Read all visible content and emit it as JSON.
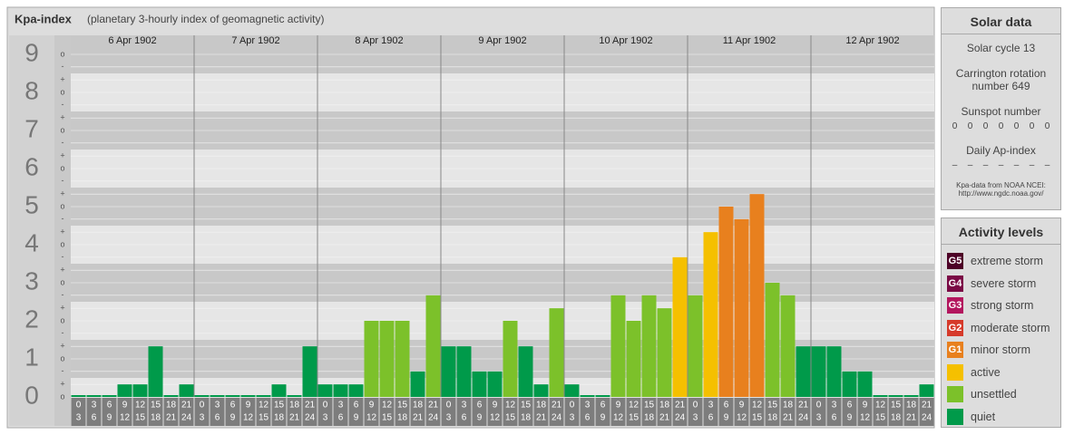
{
  "chart_data": {
    "type": "bar",
    "title": "Kpa-index",
    "subtitle": "(planetary 3-hourly index of geomagnetic activity)",
    "days": [
      "6 Apr 1902",
      "7 Apr 1902",
      "8 Apr 1902",
      "9 Apr 1902",
      "10 Apr 1902",
      "11 Apr 1902",
      "12 Apr 1902"
    ],
    "hours": [
      "0",
      "3",
      "6",
      "9",
      "12",
      "15",
      "18",
      "21",
      "24"
    ],
    "values": [
      0,
      0,
      0,
      0.33,
      0.33,
      1.33,
      0,
      0.33,
      0,
      0,
      0,
      0,
      0,
      0.33,
      0,
      1.33,
      0.33,
      0.33,
      0.33,
      2,
      2,
      2,
      0.67,
      2.67,
      1.33,
      1.33,
      0.67,
      0.67,
      2,
      1.33,
      0.33,
      2.33,
      0.33,
      0,
      0,
      2.67,
      2,
      2.67,
      2.33,
      3.67,
      2.67,
      4.33,
      5,
      4.67,
      5.33,
      3,
      2.67,
      1.33,
      1.33,
      1.33,
      0.67,
      0.67,
      0,
      0,
      0,
      0.33
    ],
    "colors": [
      "#009a4a",
      "#009a4a",
      "#009a4a",
      "#009a4a",
      "#009a4a",
      "#009a4a",
      "#009a4a",
      "#009a4a",
      "#009a4a",
      "#009a4a",
      "#009a4a",
      "#009a4a",
      "#009a4a",
      "#009a4a",
      "#009a4a",
      "#009a4a",
      "#009a4a",
      "#009a4a",
      "#009a4a",
      "#7cc12a",
      "#7cc12a",
      "#7cc12a",
      "#009a4a",
      "#7cc12a",
      "#009a4a",
      "#009a4a",
      "#009a4a",
      "#009a4a",
      "#7cc12a",
      "#009a4a",
      "#009a4a",
      "#7cc12a",
      "#009a4a",
      "#009a4a",
      "#009a4a",
      "#7cc12a",
      "#7cc12a",
      "#7cc12a",
      "#7cc12a",
      "#f5c000",
      "#7cc12a",
      "#f5c000",
      "#e8801e",
      "#e8801e",
      "#e8801e",
      "#7cc12a",
      "#7cc12a",
      "#009a4a",
      "#009a4a",
      "#009a4a",
      "#009a4a",
      "#009a4a",
      "#009a4a",
      "#009a4a",
      "#009a4a",
      "#009a4a"
    ],
    "ylim": [
      0,
      9.5
    ],
    "yticks": [
      0,
      1,
      2,
      3,
      4,
      5,
      6,
      7,
      8,
      9
    ],
    "minor_ticks": [
      {
        "value": 0,
        "label": "o"
      },
      {
        "value": 0.33,
        "label": "+"
      },
      {
        "value": 0.67,
        "label": "-"
      },
      {
        "value": 1,
        "label": "o"
      },
      {
        "value": 1.33,
        "label": "+"
      },
      {
        "value": 1.67,
        "label": "-"
      },
      {
        "value": 2,
        "label": "o"
      },
      {
        "value": 2.33,
        "label": "+"
      },
      {
        "value": 2.67,
        "label": "-"
      },
      {
        "value": 3,
        "label": "o"
      },
      {
        "value": 3.33,
        "label": "+"
      },
      {
        "value": 3.67,
        "label": "-"
      },
      {
        "value": 4,
        "label": "o"
      },
      {
        "value": 4.33,
        "label": "+"
      },
      {
        "value": 4.67,
        "label": "-"
      },
      {
        "value": 5,
        "label": "o"
      },
      {
        "value": 5.33,
        "label": "+"
      },
      {
        "value": 5.67,
        "label": "-"
      },
      {
        "value": 6,
        "label": "o"
      },
      {
        "value": 6.33,
        "label": "+"
      },
      {
        "value": 6.67,
        "label": "-"
      },
      {
        "value": 7,
        "label": "o"
      },
      {
        "value": 7.33,
        "label": "+"
      },
      {
        "value": 7.67,
        "label": "-"
      },
      {
        "value": 8,
        "label": "o"
      },
      {
        "value": 8.33,
        "label": "+"
      },
      {
        "value": 8.67,
        "label": "-"
      },
      {
        "value": 9,
        "label": "o"
      }
    ]
  },
  "solar": {
    "title": "Solar data",
    "cycle": "Solar cycle 13",
    "rotation": "Carrington rotation number 649",
    "sunspot_title": "Sunspot number",
    "sunspots": [
      0,
      0,
      0,
      0,
      0,
      0,
      0
    ],
    "ap_title": "Daily Ap-index",
    "ap": [
      "–",
      "–",
      "–",
      "–",
      "–",
      "–",
      "–"
    ],
    "source": "Kpa-data from NOAA NCEI: http://www.ngdc.noaa.gov/"
  },
  "levels": {
    "title": "Activity levels",
    "items": [
      {
        "code": "G5",
        "name": "extreme storm",
        "color": "#4d0026"
      },
      {
        "code": "G4",
        "name": "severe storm",
        "color": "#7a0a45"
      },
      {
        "code": "G3",
        "name": "strong storm",
        "color": "#b3165e"
      },
      {
        "code": "G2",
        "name": "moderate storm",
        "color": "#d63a2a"
      },
      {
        "code": "G1",
        "name": "minor storm",
        "color": "#e8801e"
      },
      {
        "name": "active",
        "color": "#f5c000"
      },
      {
        "name": "unsettled",
        "color": "#7cc12a"
      },
      {
        "name": "quiet",
        "color": "#009a4a"
      }
    ]
  }
}
